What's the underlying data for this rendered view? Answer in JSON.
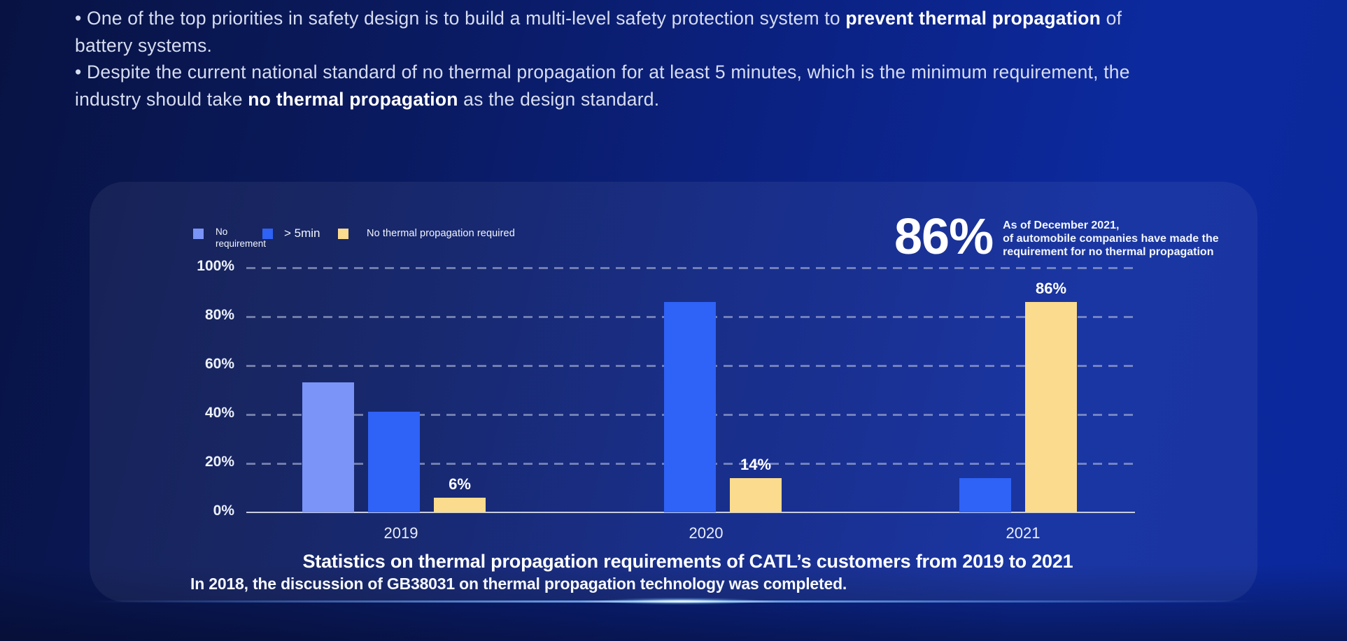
{
  "bullets": [
    {
      "pre": "• One of the top priorities in safety design is to build a multi-level safety protection system to ",
      "bold": "prevent thermal propagation",
      "post": " of battery systems."
    },
    {
      "pre": "• Despite the current national standard of no thermal propagation for at least 5 minutes, which is the minimum requirement, the industry should take ",
      "bold": "no thermal propagation",
      "post": " as the design standard."
    }
  ],
  "stat": {
    "value": "86%",
    "description": "As of December 2021,\nof automobile companies have made the\nrequirement for no thermal propagation"
  },
  "caption": "In 2018, the discussion of GB38031 on thermal propagation technology was completed.",
  "chart_data": {
    "type": "bar",
    "title": "Statistics on thermal propagation requirements of CATL’s customers from 2019 to 2021",
    "categories": [
      "2019",
      "2020",
      "2021"
    ],
    "series": [
      {
        "name": "No requirement",
        "legend_label": "No\nrequirement",
        "color": "#7b94f7",
        "values": [
          53,
          0,
          0
        ],
        "show_value_labels": false
      },
      {
        "name": "> 5min",
        "legend_label": "> 5min",
        "color": "#2f62f6",
        "values": [
          41,
          86,
          14
        ],
        "show_value_labels": false
      },
      {
        "name": "No thermal propagation required",
        "legend_label": "No thermal propagation required",
        "color": "#fbdb8d",
        "values": [
          6,
          14,
          86
        ],
        "show_value_labels": true
      }
    ],
    "value_label_format": "{v}%",
    "yticks": [
      100,
      80,
      60,
      40,
      20,
      0
    ],
    "ytick_format": "{v}%",
    "ylim": [
      0,
      100
    ],
    "grid": "horizontal-dashed",
    "legend_position": "top-left",
    "colors": {
      "grid": "rgba(186,195,224,0.55)",
      "axis": "#c7cde0",
      "bar_blue_light": "#7b94f7",
      "bar_blue": "#2f62f6",
      "bar_yellow": "#fbdb8d"
    }
  }
}
